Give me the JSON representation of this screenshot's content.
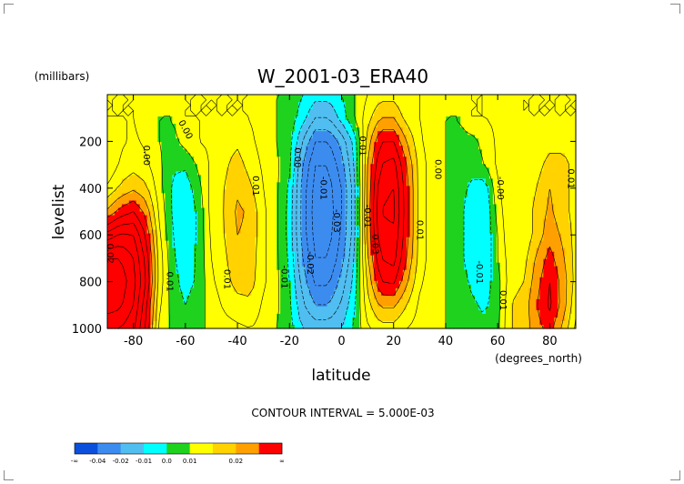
{
  "chart_data": {
    "type": "heatmap",
    "title": "W_2001-03_ERA40",
    "xlabel": "latitude",
    "ylabel": "levelist",
    "x_units": "(degrees_north)",
    "y_units": "(millibars)",
    "xlim": [
      -90,
      90
    ],
    "ylim": [
      1000,
      0
    ],
    "x_ticks": [
      -80,
      -60,
      -40,
      -20,
      0,
      20,
      40,
      60,
      80
    ],
    "x_tick_labels": [
      "-80",
      "-60",
      "-40",
      "-20",
      "0",
      "20",
      "40",
      "60",
      "80"
    ],
    "y_ticks": [
      200,
      400,
      600,
      800,
      1000
    ],
    "y_tick_labels": [
      "200",
      "400",
      "600",
      "800",
      "1000"
    ],
    "grid": false,
    "footnote": "CONTOUR INTERVAL = 5.000E-03",
    "contour_interval": 0.005,
    "colorbar": {
      "bins": [
        {
          "color": "#0a50dc"
        },
        {
          "color": "#3c8cf0"
        },
        {
          "color": "#50bef0"
        },
        {
          "color": "#00ffff"
        },
        {
          "color": "#1ed21e"
        },
        {
          "color": "#ffff00"
        },
        {
          "color": "#ffd200"
        },
        {
          "color": "#ffa000"
        },
        {
          "color": "#ff0000"
        }
      ],
      "labels": [
        {
          "text": "-∞",
          "index": 0
        },
        {
          "text": "-0.04",
          "index": 1
        },
        {
          "text": "-0.02",
          "index": 2
        },
        {
          "text": "-0.01",
          "index": 3
        },
        {
          "text": "0.0",
          "index": 4
        },
        {
          "text": "0.01",
          "index": 5
        },
        {
          "text": "0.02",
          "index": 7
        },
        {
          "text": "∞",
          "index": 9
        }
      ]
    },
    "field": {
      "latitudes": [
        -90,
        -85,
        -80,
        -75,
        -70,
        -65,
        -60,
        -55,
        -50,
        -45,
        -40,
        -35,
        -30,
        -25,
        -20,
        -15,
        -10,
        -5,
        0,
        5,
        10,
        15,
        20,
        25,
        30,
        35,
        40,
        45,
        50,
        55,
        60,
        65,
        70,
        75,
        80,
        85,
        90
      ],
      "levels": [
        0,
        100,
        200,
        300,
        400,
        500,
        600,
        700,
        800,
        900,
        1000
      ],
      "values": [
        [
          0.005,
          0.005,
          0.005,
          0.0,
          0.0,
          0.0,
          0.005,
          0.005,
          0.005,
          0.005,
          0.005,
          0.005,
          0.0,
          0.0,
          0.0,
          -0.005,
          -0.008,
          -0.008,
          -0.005,
          0.0,
          0.005,
          0.008,
          0.008,
          0.005,
          0.005,
          0.0,
          0.0,
          0.0,
          0.005,
          0.005,
          0.005,
          0.005,
          0.005,
          0.005,
          0.005,
          0.005,
          0.005
        ],
        [
          0.005,
          0.005,
          0.005,
          0.002,
          0.0,
          0.0,
          0.005,
          0.005,
          0.005,
          0.005,
          0.005,
          0.005,
          0.002,
          0.0,
          -0.002,
          -0.008,
          -0.015,
          -0.015,
          -0.008,
          0.0,
          0.008,
          0.015,
          0.015,
          0.008,
          0.005,
          0.002,
          0.0,
          0.0,
          0.005,
          0.005,
          0.006,
          0.006,
          0.005,
          0.005,
          0.005,
          0.005,
          0.005
        ],
        [
          0.0,
          0.004,
          0.006,
          0.004,
          0.0,
          -0.002,
          0.002,
          0.005,
          0.006,
          0.008,
          0.009,
          0.006,
          0.003,
          0.0,
          -0.003,
          -0.015,
          -0.025,
          -0.025,
          -0.018,
          -0.008,
          0.012,
          0.025,
          0.025,
          0.015,
          0.006,
          0.002,
          0.0,
          -0.002,
          -0.002,
          0.002,
          0.006,
          0.008,
          0.006,
          0.006,
          0.008,
          0.008,
          0.006
        ],
        [
          0.0,
          0.006,
          0.008,
          0.006,
          0.001,
          -0.004,
          -0.004,
          0.001,
          0.006,
          0.009,
          0.012,
          0.008,
          0.004,
          0.001,
          -0.004,
          -0.02,
          -0.03,
          -0.03,
          -0.022,
          -0.01,
          0.015,
          0.03,
          0.032,
          0.02,
          0.008,
          0.002,
          0.0,
          -0.002,
          -0.003,
          0.0,
          0.006,
          0.008,
          0.006,
          0.008,
          0.012,
          0.012,
          0.008
        ],
        [
          0.006,
          0.011,
          0.014,
          0.011,
          0.002,
          -0.006,
          -0.008,
          -0.002,
          0.007,
          0.01,
          0.014,
          0.011,
          0.005,
          0.001,
          -0.006,
          -0.022,
          -0.032,
          -0.032,
          -0.025,
          -0.012,
          0.016,
          0.034,
          0.035,
          0.022,
          0.008,
          0.002,
          0.0,
          -0.003,
          -0.006,
          -0.008,
          0.004,
          0.01,
          0.006,
          0.01,
          0.015,
          0.012,
          0.008
        ],
        [
          0.016,
          0.022,
          0.025,
          0.018,
          0.004,
          -0.006,
          -0.009,
          -0.004,
          0.007,
          0.01,
          0.016,
          0.014,
          0.006,
          0.001,
          -0.007,
          -0.022,
          -0.033,
          -0.033,
          -0.025,
          -0.012,
          0.017,
          0.035,
          0.036,
          0.022,
          0.008,
          0.002,
          0.0,
          -0.003,
          -0.008,
          -0.01,
          0.002,
          0.01,
          0.006,
          0.012,
          0.016,
          0.012,
          0.008
        ],
        [
          0.032,
          0.036,
          0.035,
          0.024,
          0.006,
          -0.005,
          -0.009,
          -0.004,
          0.006,
          0.01,
          0.015,
          0.014,
          0.006,
          0.001,
          -0.007,
          -0.022,
          -0.032,
          -0.032,
          -0.024,
          -0.012,
          0.016,
          0.034,
          0.034,
          0.022,
          0.008,
          0.002,
          0.0,
          -0.003,
          -0.008,
          -0.01,
          0.0,
          0.01,
          0.006,
          0.012,
          0.018,
          0.014,
          0.008
        ],
        [
          0.045,
          0.045,
          0.04,
          0.028,
          0.008,
          -0.004,
          -0.008,
          -0.004,
          0.005,
          0.009,
          0.014,
          0.013,
          0.006,
          0.001,
          -0.006,
          -0.02,
          -0.03,
          -0.03,
          -0.022,
          -0.01,
          0.014,
          0.03,
          0.032,
          0.02,
          0.008,
          0.002,
          0.0,
          -0.003,
          -0.008,
          -0.01,
          0.0,
          0.008,
          0.008,
          0.016,
          0.022,
          0.016,
          0.008
        ],
        [
          0.05,
          0.048,
          0.042,
          0.03,
          0.008,
          -0.003,
          -0.007,
          -0.004,
          0.004,
          0.008,
          0.012,
          0.012,
          0.006,
          0.001,
          -0.005,
          -0.017,
          -0.026,
          -0.026,
          -0.018,
          -0.008,
          0.011,
          0.025,
          0.026,
          0.016,
          0.006,
          0.002,
          0.0,
          -0.002,
          -0.006,
          -0.008,
          -0.002,
          0.008,
          0.01,
          0.018,
          0.025,
          0.018,
          0.008
        ],
        [
          0.048,
          0.046,
          0.04,
          0.026,
          0.006,
          -0.002,
          -0.005,
          -0.002,
          0.002,
          0.006,
          0.008,
          0.009,
          0.004,
          0.001,
          -0.004,
          -0.014,
          -0.02,
          -0.02,
          -0.014,
          -0.006,
          0.008,
          0.016,
          0.016,
          0.01,
          0.004,
          0.002,
          0.0,
          -0.002,
          -0.004,
          -0.006,
          -0.002,
          0.01,
          0.012,
          0.02,
          0.026,
          0.018,
          0.006
        ],
        [
          0.04,
          0.04,
          0.036,
          0.024,
          0.004,
          -0.001,
          -0.003,
          -0.001,
          0.001,
          0.003,
          0.004,
          0.005,
          0.003,
          0.0,
          -0.003,
          -0.01,
          -0.012,
          -0.012,
          -0.01,
          -0.004,
          0.004,
          0.008,
          0.008,
          0.005,
          0.003,
          0.001,
          0.0,
          -0.001,
          -0.002,
          -0.004,
          -0.001,
          0.01,
          0.012,
          0.018,
          0.022,
          0.014,
          0.004
        ]
      ]
    },
    "annotations": [
      {
        "text": "0.00",
        "lat": -60,
        "p": 150,
        "rot": 62
      },
      {
        "text": "0.00",
        "lat": -75,
        "p": 260,
        "rot": 90
      },
      {
        "text": "0.01",
        "lat": -33,
        "p": 390,
        "rot": 90
      },
      {
        "text": "0.00",
        "lat": -17,
        "p": 270,
        "rot": 90
      },
      {
        "text": "0.01",
        "lat": -44,
        "p": 790,
        "rot": 90
      },
      {
        "text": "-0.01",
        "lat": -7,
        "p": 400,
        "rot": 90
      },
      {
        "text": "-0.02",
        "lat": -12,
        "p": 720,
        "rot": 90
      },
      {
        "text": "-0.01",
        "lat": -22,
        "p": 780,
        "rot": 90
      },
      {
        "text": "-0.03",
        "lat": -2,
        "p": 540,
        "rot": 90
      },
      {
        "text": "0.01",
        "lat": 8,
        "p": 220,
        "rot": 90
      },
      {
        "text": "-0.01",
        "lat": 10,
        "p": 520,
        "rot": 90
      },
      {
        "text": "0.03",
        "lat": 13,
        "p": 640,
        "rot": 90
      },
      {
        "text": "0.00",
        "lat": 37,
        "p": 320,
        "rot": 90
      },
      {
        "text": "0.01",
        "lat": 30,
        "p": 580,
        "rot": 90
      },
      {
        "text": "-0.00",
        "lat": 61,
        "p": 400,
        "rot": 90
      },
      {
        "text": "-0.01",
        "lat": 53,
        "p": 760,
        "rot": 90
      },
      {
        "text": "0.01",
        "lat": 88,
        "p": 360,
        "rot": 90
      },
      {
        "text": "0.01",
        "lat": 62,
        "p": 880,
        "rot": 90
      },
      {
        "text": "0.01",
        "lat": -66,
        "p": 800,
        "rot": 90
      },
      {
        "text": "0.02",
        "lat": -89,
        "p": 680,
        "rot": 90
      }
    ]
  }
}
